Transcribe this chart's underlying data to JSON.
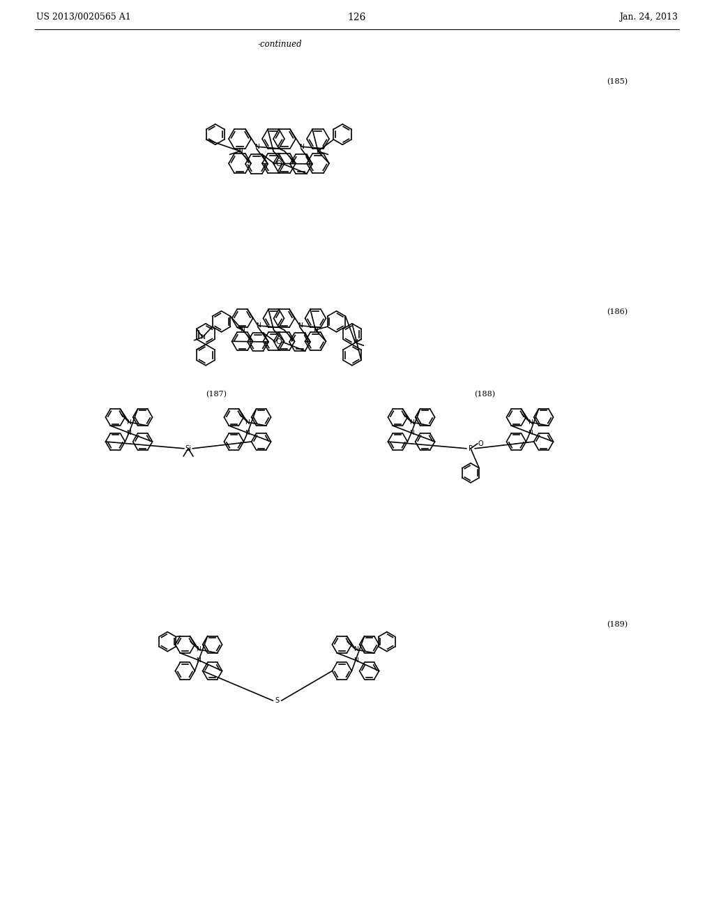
{
  "patent_number": "US 2013/0020565 A1",
  "date": "Jan. 24, 2013",
  "page_number": "126",
  "continued_text": "-continued",
  "compound_labels": [
    "(185)",
    "(186)",
    "(187)",
    "(188)",
    "(189)"
  ],
  "bg_color": "#ffffff",
  "line_color": "#000000",
  "lw": 1.2,
  "lw_thin": 0.9
}
